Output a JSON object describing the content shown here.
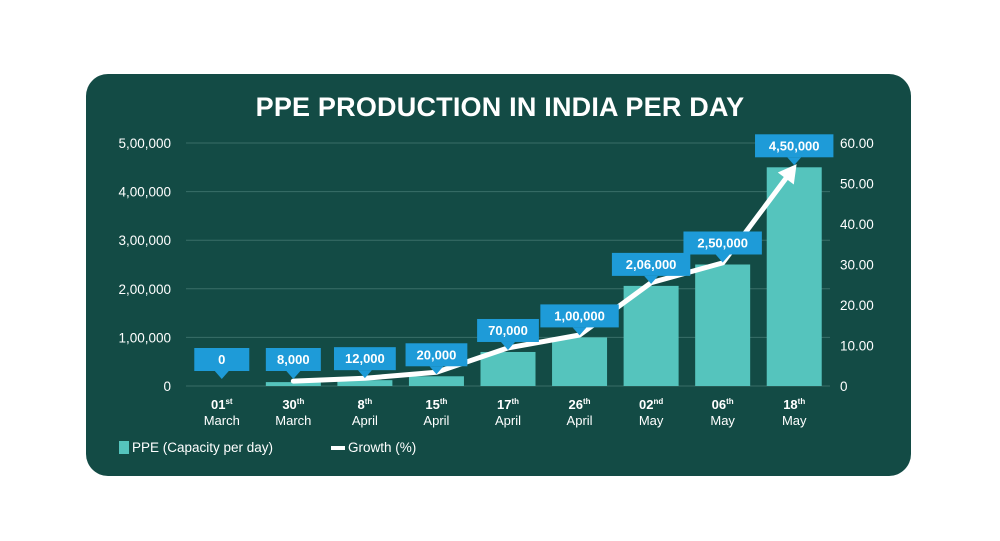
{
  "title": "PPE PRODUCTION IN INDIA PER DAY",
  "chart_data": {
    "type": "bar",
    "title": "PPE PRODUCTION IN INDIA PER DAY",
    "categories": [
      {
        "day": "01",
        "suffix": "st",
        "month": "March"
      },
      {
        "day": "30",
        "suffix": "th",
        "month": "March"
      },
      {
        "day": "8",
        "suffix": "th",
        "month": "April"
      },
      {
        "day": "15",
        "suffix": "th",
        "month": "April"
      },
      {
        "day": "17",
        "suffix": "th",
        "month": "April"
      },
      {
        "day": "26",
        "suffix": "th",
        "month": "April"
      },
      {
        "day": "02",
        "suffix": "nd",
        "month": "May"
      },
      {
        "day": "06",
        "suffix": "th",
        "month": "May"
      },
      {
        "day": "18",
        "suffix": "th",
        "month": "May"
      }
    ],
    "series": [
      {
        "name": "PPE (Capacity per day)",
        "type": "bar",
        "axis": "left",
        "values": [
          0,
          8000,
          12000,
          20000,
          70000,
          100000,
          206000,
          250000,
          450000
        ],
        "labels": [
          "0",
          "8,000",
          "12,000",
          "20,000",
          "70,000",
          "1,00,000",
          "2,06,000",
          "2,50,000",
          "4,50,000"
        ]
      },
      {
        "name": "Growth (%)",
        "type": "line",
        "axis": "right",
        "values": [
          null,
          1.2,
          1.9,
          3.4,
          9.4,
          12.6,
          25.5,
          30.4,
          54.0
        ]
      }
    ],
    "y_left": {
      "min": 0,
      "max": 500000,
      "ticks": [
        "0",
        "1,00,000",
        "2,00,000",
        "3,00,000",
        "4,00,000",
        "5,00,000"
      ]
    },
    "y_right": {
      "min": 0,
      "max": 60,
      "ticks": [
        "0",
        "10.00",
        "20.00",
        "30.00",
        "40.00",
        "50.00",
        "60.00"
      ]
    },
    "grid": true,
    "legend": "bottom-left"
  },
  "colors": {
    "panel": "#134b45",
    "bar": "#55c4bd",
    "label_box": "#1e9bd8",
    "line": "#ffffff",
    "grid": "#3a6e68"
  }
}
